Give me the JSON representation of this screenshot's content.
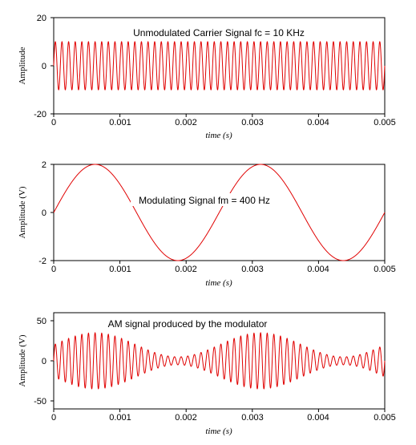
{
  "chart_data": [
    {
      "type": "line",
      "title": "",
      "annotation": "Unmodulated Carrier Signal fc = 10 KHz",
      "xlabel": "time (s)",
      "ylabel": "Amplitude",
      "xlim": [
        0,
        0.005
      ],
      "ylim": [
        -20,
        20
      ],
      "x_ticks": [
        "0",
        "0.001",
        "0.002",
        "0.003",
        "0.004",
        "0.005"
      ],
      "y_ticks": [
        "20",
        "0",
        "-20"
      ],
      "series": [
        {
          "function": "carrier",
          "amplitude": 10,
          "frequency_hz": 10000,
          "color": "#e00000"
        }
      ]
    },
    {
      "type": "line",
      "title": "",
      "annotation": "Modulating Signal fm = 400 Hz",
      "xlabel": "time (s)",
      "ylabel": "Amplitude (V)",
      "xlim": [
        0,
        0.005
      ],
      "ylim": [
        -2,
        2
      ],
      "x_ticks": [
        "0",
        "0.001",
        "0.002",
        "0.003",
        "0.004",
        "0.005"
      ],
      "y_ticks": [
        "2",
        "0",
        "-2"
      ],
      "series": [
        {
          "function": "modulating",
          "amplitude": 2,
          "frequency_hz": 400,
          "color": "#e00000"
        }
      ]
    },
    {
      "type": "line",
      "title": "",
      "annotation": "AM signal produced by the modulator",
      "xlabel": "time (s)",
      "ylabel": "Amplitude (V)",
      "xlim": [
        0,
        0.005
      ],
      "ylim": [
        -60,
        60
      ],
      "x_ticks": [
        "0",
        "0.001",
        "0.002",
        "0.003",
        "0.004",
        "0.005"
      ],
      "y_ticks": [
        "50",
        "0",
        "-50"
      ],
      "series": [
        {
          "function": "am",
          "carrier_amplitude": 20,
          "modulation_depth": 0.75,
          "carrier_frequency_hz": 10000,
          "modulating_frequency_hz": 400,
          "color": "#e00000"
        }
      ]
    }
  ]
}
